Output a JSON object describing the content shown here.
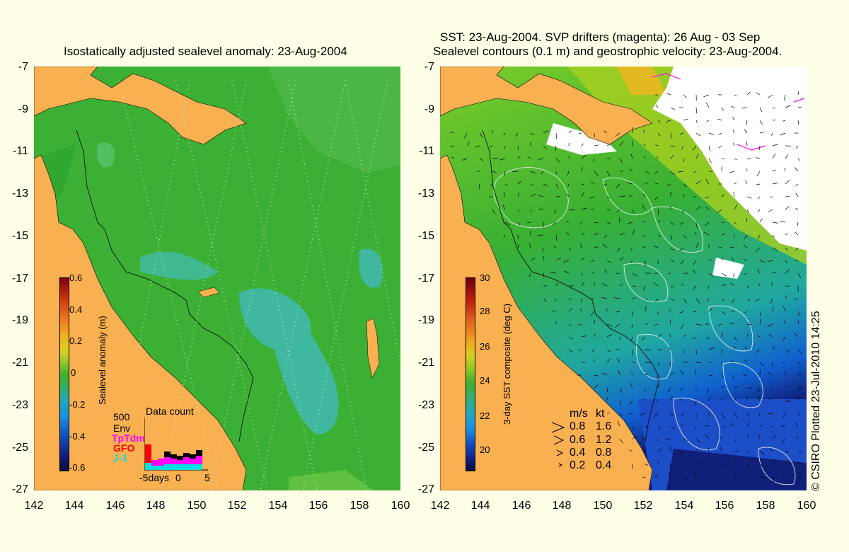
{
  "left_panel": {
    "title": "Isostatically adjusted sealevel anomaly: 23-Aug-2004",
    "colorbar_label": "Sealevel anomaly (m)",
    "colorbar_ticks": [
      "0.6",
      "0.4",
      "0.2",
      "0",
      "-0.2",
      "-0.4",
      "-0.6"
    ],
    "data_count": {
      "title": "Data count",
      "scale_label": "500",
      "sources": [
        {
          "name": "Env",
          "color": "#000000"
        },
        {
          "name": "TpTdm",
          "color": "#ff00ff"
        },
        {
          "name": "GFO",
          "color": "#ff0000"
        },
        {
          "name": "J-1",
          "color": "#00e0e0"
        }
      ],
      "x_labels": [
        "-5days",
        "0",
        "5"
      ]
    }
  },
  "right_panel": {
    "title_line1": "SST: 23-Aug-2004. SVP drifters (magenta): 26 Aug - 03 Sep",
    "title_line2": "Sealevel contours (0.1 m) and geostrophic velocity: 23-Aug-2004.",
    "colorbar_label": "3-day SST composite (deg C)",
    "colorbar_ticks": [
      "30",
      "28",
      "26",
      "24",
      "22",
      "20"
    ],
    "velocity_legend": {
      "header_ms": "m/s",
      "header_kt": "kt",
      "rows": [
        {
          "ms": "0.8",
          "kt": "1.6"
        },
        {
          "ms": "0.6",
          "kt": "1.2"
        },
        {
          "ms": "0.4",
          "kt": "0.8"
        },
        {
          "ms": "0.2",
          "kt": "0.4"
        }
      ]
    }
  },
  "axes": {
    "y_ticks": [
      "-7",
      "-9",
      "-11",
      "-13",
      "-15",
      "-17",
      "-19",
      "-21",
      "-23",
      "-25",
      "-27"
    ],
    "x_ticks": [
      "142",
      "144",
      "146",
      "148",
      "150",
      "152",
      "154",
      "156",
      "158",
      "160"
    ]
  },
  "credit": "© CSIRO Plotted 23-Jul-2010 14:25",
  "colors": {
    "land": "#f8b050",
    "ocean_anomaly": "#30b030",
    "background": "#ffffe8"
  }
}
